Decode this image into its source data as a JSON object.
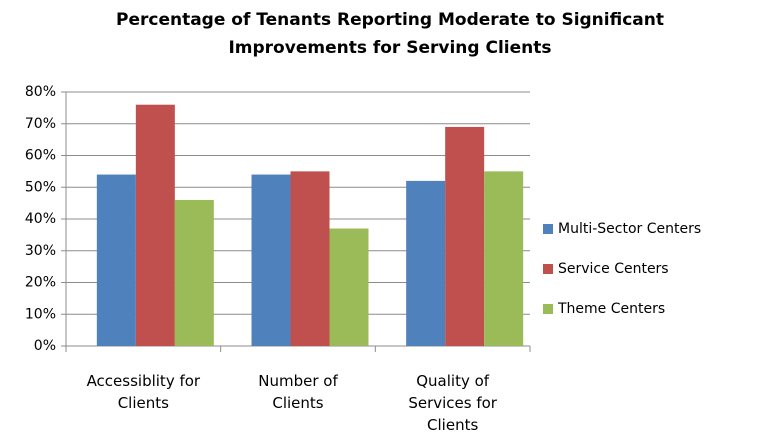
{
  "chart_data": {
    "type": "bar",
    "title": "Percentage of Tenants Reporting Moderate to Significant Improvements for Serving Clients",
    "categories": [
      "Accessiblity for Clients",
      "Number of Clients",
      "Quality of Services for Clients"
    ],
    "series": [
      {
        "name": "Multi-Sector Centers",
        "color": "#4f81bd",
        "values": [
          54,
          54,
          52
        ]
      },
      {
        "name": "Service Centers",
        "color": "#c0504d",
        "values": [
          76,
          55,
          69
        ]
      },
      {
        "name": "Theme Centers",
        "color": "#9bbb59",
        "values": [
          46,
          37,
          55
        ]
      }
    ],
    "ylim": [
      0,
      80
    ],
    "yticks": [
      {
        "value": 0,
        "label": "0%"
      },
      {
        "value": 10,
        "label": "10%"
      },
      {
        "value": 20,
        "label": "20%"
      },
      {
        "value": 30,
        "label": "30%"
      },
      {
        "value": 40,
        "label": "40%"
      },
      {
        "value": 50,
        "label": "50%"
      },
      {
        "value": 60,
        "label": "60%"
      },
      {
        "value": 70,
        "label": "70%"
      },
      {
        "value": 80,
        "label": "80%"
      }
    ],
    "grid": true,
    "legend": "right"
  }
}
